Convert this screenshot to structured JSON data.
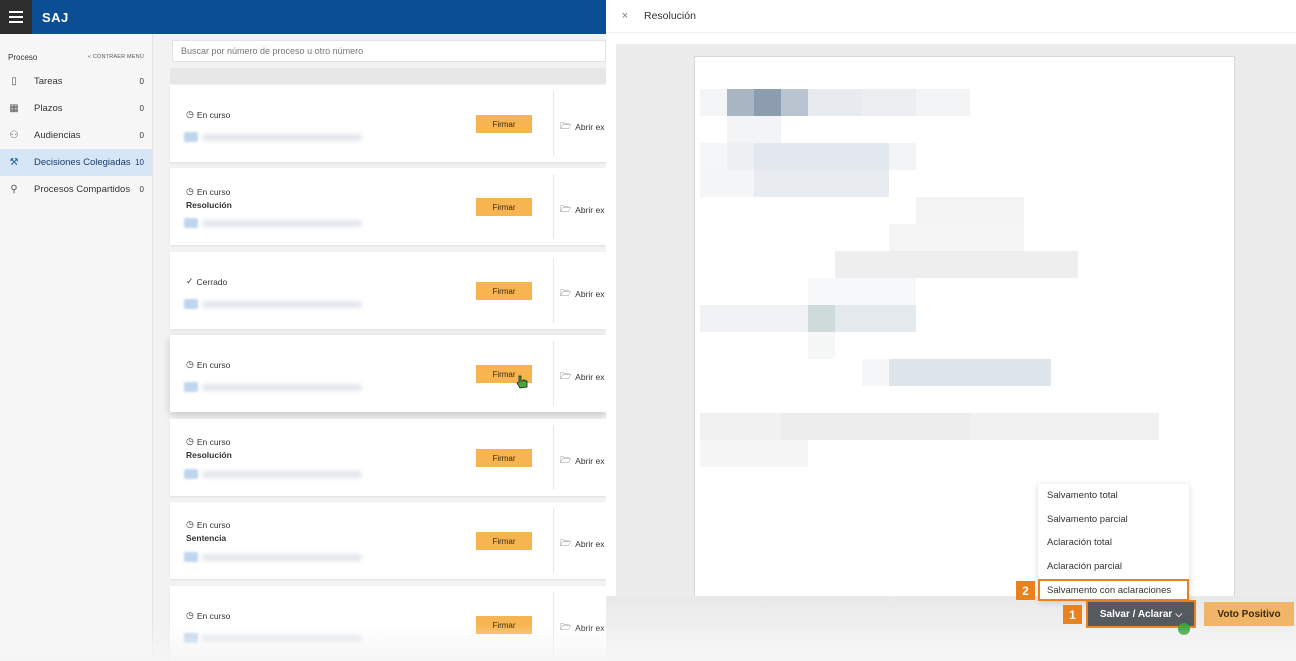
{
  "app": {
    "brand": "SAJ"
  },
  "sidebar": {
    "title": "Proceso",
    "collapse_label": "« CONTRAER MENÚ",
    "items": [
      {
        "label": "Tareas",
        "count": "0",
        "icon": "tasks-icon"
      },
      {
        "label": "Plazos",
        "count": "0",
        "icon": "calendar-icon"
      },
      {
        "label": "Audiencias",
        "count": "0",
        "icon": "people-icon"
      },
      {
        "label": "Decisiones Colegiadas",
        "count": "10",
        "icon": "gavel-icon",
        "active": true
      },
      {
        "label": "Procesos Compartidos",
        "count": "0",
        "icon": "share-user-icon"
      }
    ]
  },
  "search": {
    "placeholder": "Buscar por número de proceso u otro número"
  },
  "cards": [
    {
      "status": "En curso",
      "status_icon": "clock-icon",
      "title": "",
      "button": "Firmar",
      "open": "Abrir ex"
    },
    {
      "status": "En curso",
      "status_icon": "clock-icon",
      "title": "Resolución",
      "button": "Firmar",
      "open": "Abrir ex"
    },
    {
      "status": "Cerrado",
      "status_icon": "check-circle-icon",
      "title": "",
      "button": "Firmar",
      "open": "Abrir ex"
    },
    {
      "status": "En curso",
      "status_icon": "clock-icon",
      "title": "",
      "button": "Firmar",
      "open": "Abrir ex"
    },
    {
      "status": "En curso",
      "status_icon": "clock-icon",
      "title": "Resolución",
      "button": "Firmar",
      "open": "Abrir ex"
    },
    {
      "status": "En curso",
      "status_icon": "clock-icon",
      "title": "Sentencia",
      "button": "Firmar",
      "open": "Abrir ex"
    },
    {
      "status": "En curso",
      "status_icon": "clock-icon",
      "title": "",
      "button": "Firmar",
      "open": "Abrir ex"
    }
  ],
  "panel": {
    "close_symbol": "×",
    "title": "Resolución",
    "dropdown_options": [
      "Salvamento total",
      "Salvamento parcial",
      "Aclaración total",
      "Aclaración parcial",
      "Salvamento con aclaraciones"
    ],
    "primary_button": "Salvar / Aclarar",
    "primary_caret": "⌵",
    "secondary_button": "Voto Positivo",
    "step_badges": [
      "1",
      "2"
    ]
  },
  "colors": {
    "brand_blue": "#0b4e94",
    "accent_orange": "#e8811e",
    "firmar": "#f7b552"
  }
}
